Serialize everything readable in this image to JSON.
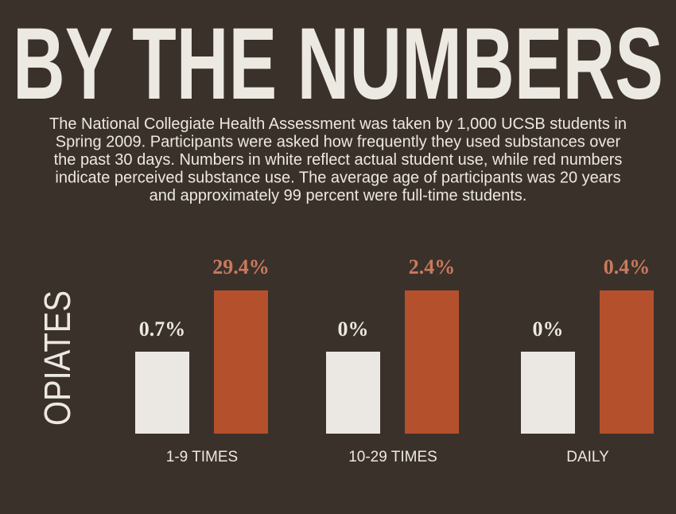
{
  "header": {
    "title": "BY THE NUMBERS",
    "description": [
      "The National Collegiate Health Assessment was taken by 1,000 UCSB students in",
      "Spring 2009. Participants were asked how frequently they used substances over",
      "the past 30 days. Numbers in white reflect actual student use, while red numbers",
      "indicate perceived substance use. The average age of participants was 20 years",
      "and approximately 99 percent were full-time students."
    ]
  },
  "side_label": "OPIATES",
  "groups": [
    {
      "label": "1-9 TIMES",
      "actual": "0.7%",
      "perceived": "29.4%"
    },
    {
      "label": "10-29 TIMES",
      "actual": "0%",
      "perceived": "2.4%"
    },
    {
      "label": "DAILY",
      "actual": "0%",
      "perceived": "0.4%"
    }
  ]
}
